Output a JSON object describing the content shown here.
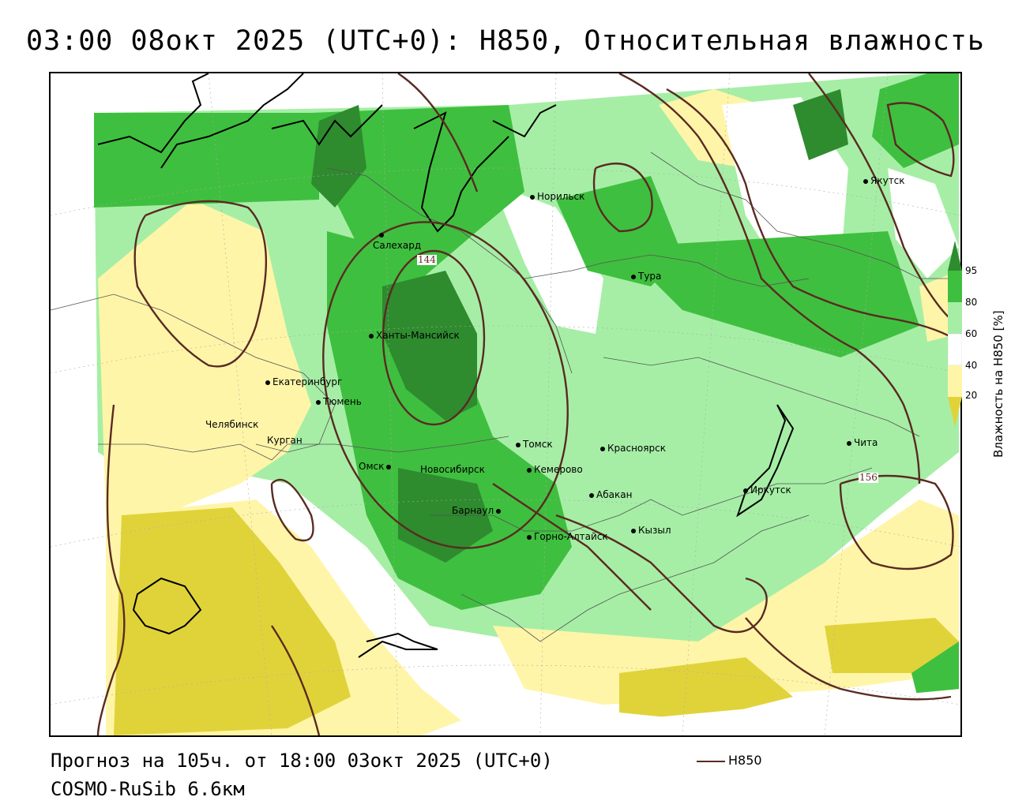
{
  "title": "03:00 08окт 2025 (UTC+0): H850, Относительная влажность",
  "footer": {
    "forecast": "Прогноз на 105ч. от 18:00 03окт 2025 (UTC+0)",
    "model": "COSMO-RuSib 6.6км"
  },
  "legend": {
    "label": "H850",
    "line_color": "#5a2a22"
  },
  "colorbar": {
    "title": "Влажность на H850 [%]",
    "ticks": [
      "95",
      "80",
      "60",
      "40",
      "20"
    ],
    "colors": {
      "gt95": "#2e8b2e",
      "c80_95": "#3fbf3f",
      "c60_80": "#a6eea6",
      "c40_60": "#ffffff",
      "c20_40": "#fff5a8",
      "lt20": "#e0d33a"
    }
  },
  "contour_labels": [
    "144",
    "156"
  ],
  "cities": [
    {
      "name": "Якутск"
    },
    {
      "name": "Норильск"
    },
    {
      "name": "Салехард"
    },
    {
      "name": "Тура"
    },
    {
      "name": "Ханты-Мансийск"
    },
    {
      "name": "Екатеринбург"
    },
    {
      "name": "Тюмень"
    },
    {
      "name": "Челябинск"
    },
    {
      "name": "Курган"
    },
    {
      "name": "Томск"
    },
    {
      "name": "Красноярск"
    },
    {
      "name": "Омск"
    },
    {
      "name": "Новосибирск"
    },
    {
      "name": "Кемерово"
    },
    {
      "name": "Абакан"
    },
    {
      "name": "Иркутск"
    },
    {
      "name": "Чита"
    },
    {
      "name": "Барнаул"
    },
    {
      "name": "Горно-Алтайск"
    },
    {
      "name": "Кызыл"
    }
  ]
}
